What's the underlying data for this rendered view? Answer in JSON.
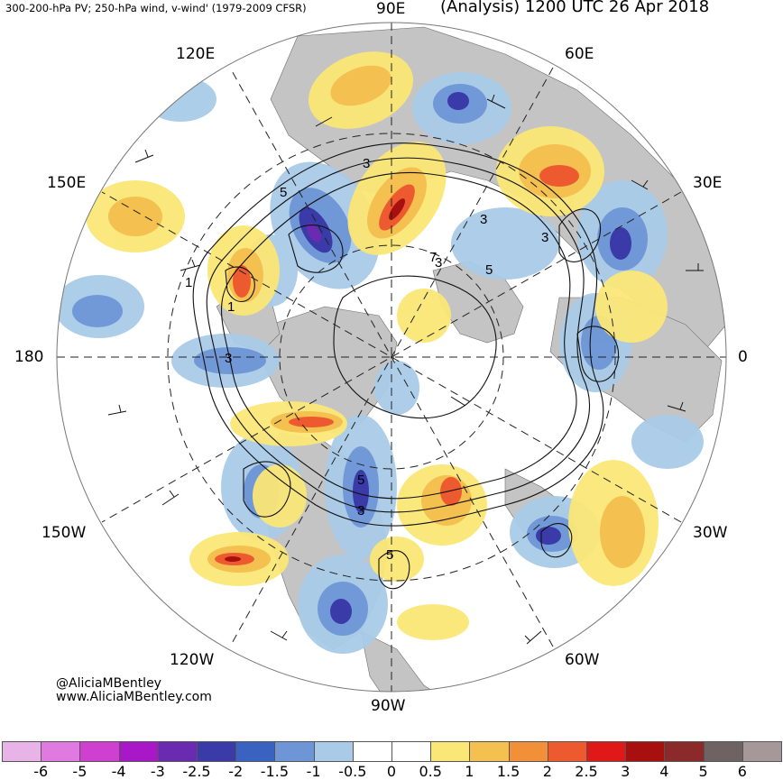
{
  "header": {
    "left_title": "300-200-hPa PV; 250-hPa wind, v-wind' (1979-2009 CFSR)",
    "right_title": "(Analysis) 1200 UTC 26 Apr 2018"
  },
  "longitude_labels": {
    "e90": "90E",
    "e60": "60E",
    "e30": "30E",
    "zero": "0",
    "w30": "30W",
    "w60": "60W",
    "w90": "90W",
    "w120": "120W",
    "w150": "150W",
    "dateline": "180",
    "e150": "150E",
    "e120": "120E"
  },
  "credits": {
    "handle": "@AliciaMBentley",
    "website": "www.AliciaMBentley.com"
  },
  "contour_labels": [
    "3",
    "5",
    "3",
    "5",
    "3",
    "1",
    "3",
    "5",
    "3",
    "5",
    "7",
    "3",
    "1"
  ],
  "colorbar": {
    "ticks": [
      "-6",
      "-5",
      "-4",
      "-3",
      "-2.5",
      "-2",
      "-1.5",
      "-1",
      "-0.5",
      "0",
      "0.5",
      "1",
      "1.5",
      "2",
      "2.5",
      "3",
      "4",
      "5",
      "6"
    ],
    "colors": [
      "#e8b4e8",
      "#e07ae0",
      "#d040d0",
      "#a818c8",
      "#6a2bb0",
      "#3a3aa8",
      "#3a62c0",
      "#6e96d6",
      "#a9cbe8",
      "#ffffff",
      "#ffffff",
      "#fbe777",
      "#f4c050",
      "#f2903a",
      "#ee5a30",
      "#e01818",
      "#a81010",
      "#8a2a2a",
      "#6e6262",
      "#a69898"
    ]
  }
}
